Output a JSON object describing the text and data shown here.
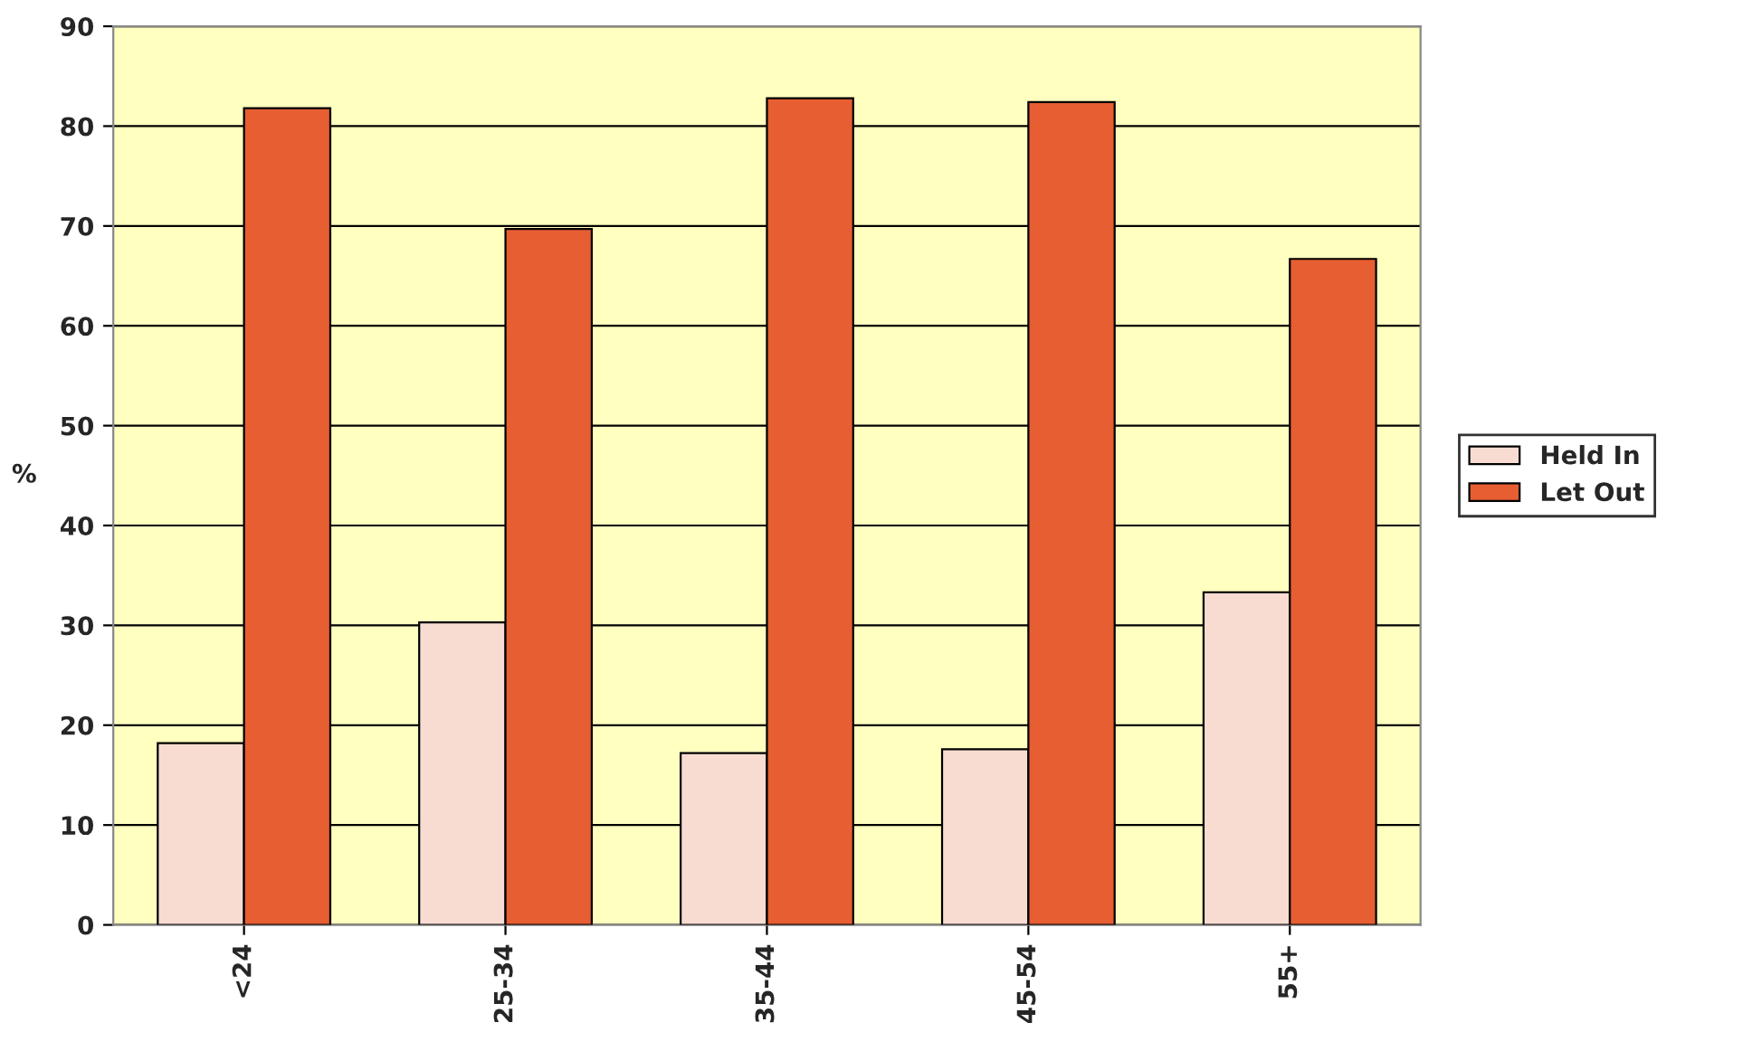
{
  "chart_data": {
    "type": "bar",
    "ylabel": "%",
    "categories": [
      "<24",
      "25-34",
      "35-44",
      "45-54",
      "55+"
    ],
    "series": [
      {
        "name": "Held In",
        "color": "#f8dcd2",
        "values": [
          18.2,
          30.3,
          17.2,
          17.6,
          33.3
        ]
      },
      {
        "name": "Let Out",
        "color": "#e65e32",
        "values": [
          81.8,
          69.7,
          82.8,
          82.4,
          66.7
        ]
      }
    ],
    "ylim": [
      0,
      90
    ],
    "yticks": [
      0,
      10,
      20,
      30,
      40,
      50,
      60,
      70,
      80,
      90
    ],
    "grid": "y",
    "legend": "right"
  }
}
